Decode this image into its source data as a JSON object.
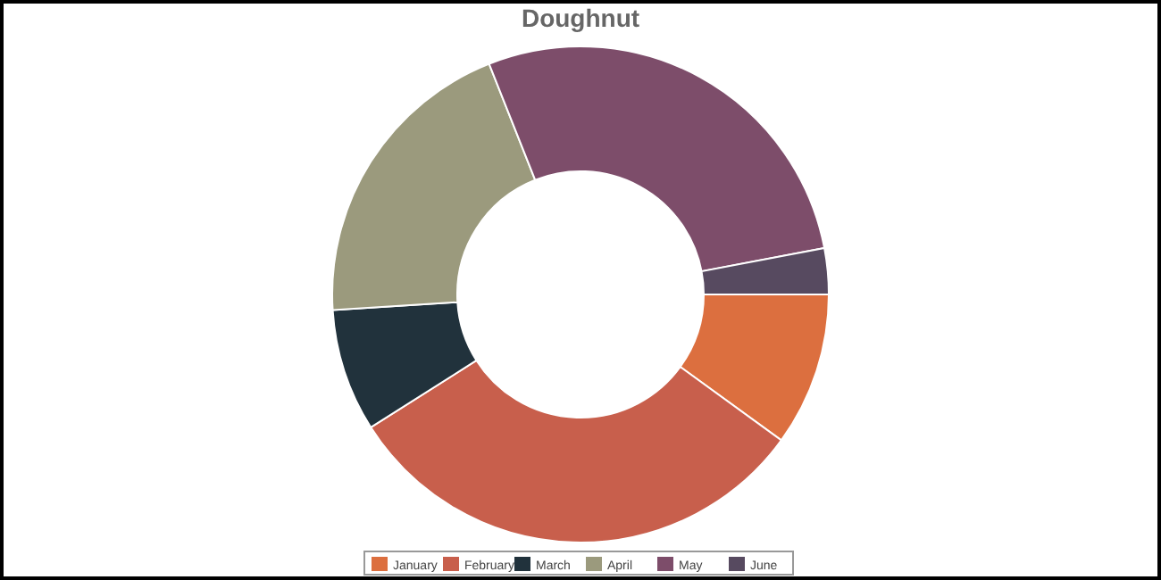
{
  "chart_data": {
    "type": "donut",
    "title": "Doughnut",
    "categories": [
      "January",
      "February",
      "March",
      "April",
      "May",
      "June"
    ],
    "values": [
      10,
      31,
      8,
      20,
      28,
      3
    ],
    "colors": [
      "#dc6f3f",
      "#c85f4c",
      "#21323c",
      "#9b9a7d",
      "#7d4d6a",
      "#574a60"
    ],
    "legend": "bottom"
  }
}
